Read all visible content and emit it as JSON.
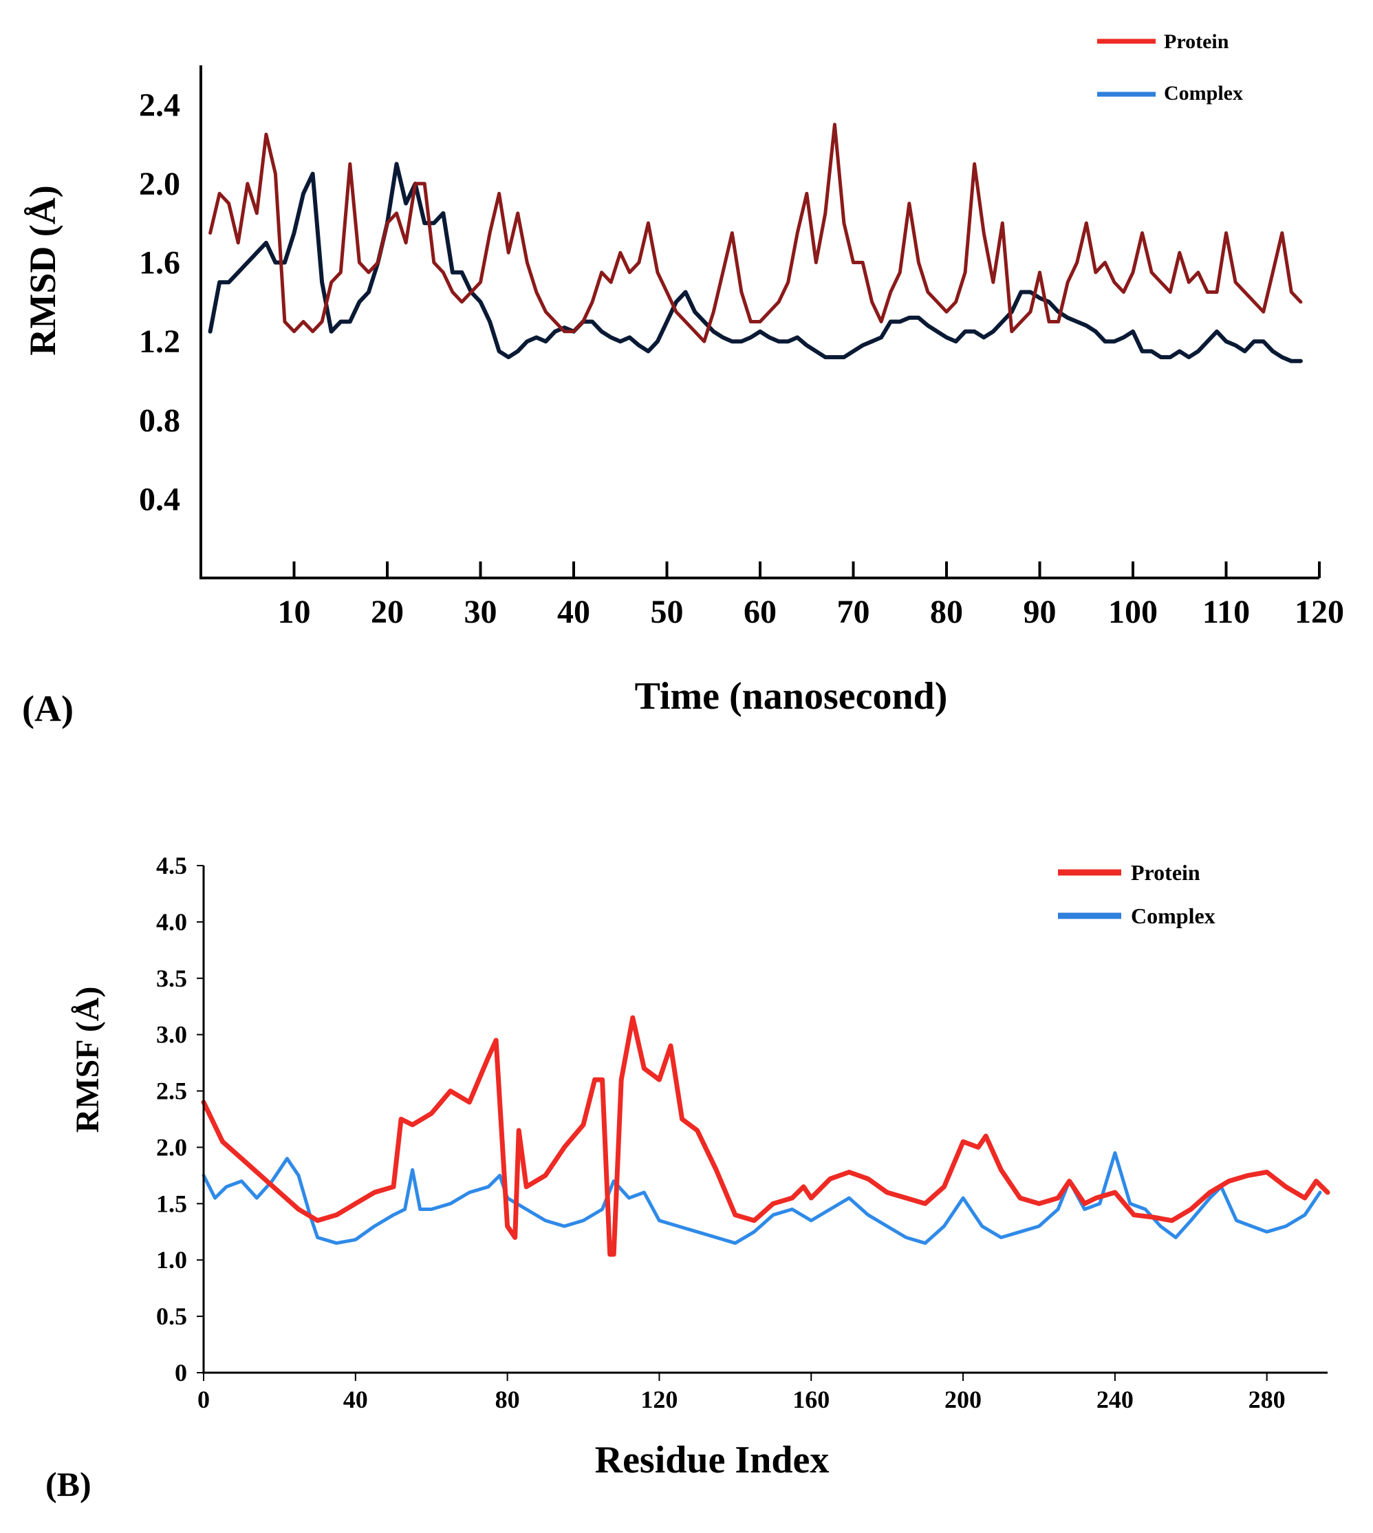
{
  "chart_data": [
    {
      "id": "A",
      "type": "line",
      "panel_label": "(A)",
      "title": "",
      "xlabel": "Time (nanosecond)",
      "ylabel": "RMSD (Å)",
      "xlim": [
        0,
        120
      ],
      "ylim": [
        0,
        2.6
      ],
      "xticks": [
        10,
        20,
        30,
        40,
        50,
        60,
        70,
        80,
        90,
        100,
        110,
        120
      ],
      "xtick_labels": [
        "10",
        "20",
        "30",
        "40",
        "50",
        "60",
        "70",
        "80",
        "90",
        "100",
        "110",
        "120"
      ],
      "yticks": [
        0.4,
        0.8,
        1.2,
        1.6,
        2.0,
        2.4
      ],
      "ytick_labels": [
        "0.4",
        "0.8",
        "1.2",
        "1.6",
        "2.0",
        "2.4"
      ],
      "legend_position": "top-right",
      "series": [
        {
          "name": "Protein",
          "legend_label": "Protein",
          "legend_color": "#ee2a24",
          "color": "#8b1a1a",
          "x": [
            1,
            2,
            3,
            4,
            5,
            6,
            7,
            8,
            9,
            10,
            11,
            12,
            13,
            14,
            15,
            16,
            17,
            18,
            19,
            20,
            21,
            22,
            23,
            24,
            25,
            26,
            27,
            28,
            29,
            30,
            31,
            32,
            33,
            34,
            35,
            36,
            37,
            38,
            39,
            40,
            41,
            42,
            43,
            44,
            45,
            46,
            47,
            48,
            49,
            50,
            51,
            52,
            53,
            54,
            55,
            56,
            57,
            58,
            59,
            60,
            61,
            62,
            63,
            64,
            65,
            66,
            67,
            68,
            69,
            70,
            71,
            72,
            73,
            74,
            75,
            76,
            77,
            78,
            79,
            80,
            81,
            82,
            83,
            84,
            85,
            86,
            87,
            88,
            89,
            90,
            91,
            92,
            93,
            94,
            95,
            96,
            97,
            98,
            99,
            100,
            101,
            102,
            103,
            104,
            105,
            106,
            107,
            108,
            109,
            110,
            111,
            112,
            113,
            114,
            115,
            116,
            117,
            118
          ],
          "y": [
            1.75,
            1.95,
            1.9,
            1.7,
            2.0,
            1.85,
            2.25,
            2.05,
            1.3,
            1.25,
            1.3,
            1.25,
            1.3,
            1.5,
            1.55,
            2.1,
            1.6,
            1.55,
            1.6,
            1.8,
            1.85,
            1.7,
            2.0,
            2.0,
            1.6,
            1.55,
            1.45,
            1.4,
            1.45,
            1.5,
            1.75,
            1.95,
            1.65,
            1.85,
            1.6,
            1.45,
            1.35,
            1.3,
            1.25,
            1.25,
            1.3,
            1.4,
            1.55,
            1.5,
            1.65,
            1.55,
            1.6,
            1.8,
            1.55,
            1.45,
            1.35,
            1.3,
            1.25,
            1.2,
            1.35,
            1.55,
            1.75,
            1.45,
            1.3,
            1.3,
            1.35,
            1.4,
            1.5,
            1.75,
            1.95,
            1.6,
            1.85,
            2.3,
            1.8,
            1.6,
            1.6,
            1.4,
            1.3,
            1.45,
            1.55,
            1.9,
            1.6,
            1.45,
            1.4,
            1.35,
            1.4,
            1.55,
            2.1,
            1.75,
            1.5,
            1.8,
            1.25,
            1.3,
            1.35,
            1.55,
            1.3,
            1.3,
            1.5,
            1.6,
            1.8,
            1.55,
            1.6,
            1.5,
            1.45,
            1.55,
            1.75,
            1.55,
            1.5,
            1.45,
            1.65,
            1.5,
            1.55,
            1.45,
            1.45,
            1.75,
            1.5,
            1.45,
            1.4,
            1.35,
            1.55,
            1.75,
            1.45,
            1.4
          ]
        },
        {
          "name": "Complex",
          "legend_label": "Complex",
          "legend_color": "#2f7fdc",
          "color": "#0a1a35",
          "x": [
            1,
            2,
            3,
            4,
            5,
            6,
            7,
            8,
            9,
            10,
            11,
            12,
            13,
            14,
            15,
            16,
            17,
            18,
            19,
            20,
            21,
            22,
            23,
            24,
            25,
            26,
            27,
            28,
            29,
            30,
            31,
            32,
            33,
            34,
            35,
            36,
            37,
            38,
            39,
            40,
            41,
            42,
            43,
            44,
            45,
            46,
            47,
            48,
            49,
            50,
            51,
            52,
            53,
            54,
            55,
            56,
            57,
            58,
            59,
            60,
            61,
            62,
            63,
            64,
            65,
            66,
            67,
            68,
            69,
            70,
            71,
            72,
            73,
            74,
            75,
            76,
            77,
            78,
            79,
            80,
            81,
            82,
            83,
            84,
            85,
            86,
            87,
            88,
            89,
            90,
            91,
            92,
            93,
            94,
            95,
            96,
            97,
            98,
            99,
            100,
            101,
            102,
            103,
            104,
            105,
            106,
            107,
            108,
            109,
            110,
            111,
            112,
            113,
            114,
            115,
            116,
            117,
            118
          ],
          "y": [
            1.25,
            1.5,
            1.5,
            1.55,
            1.6,
            1.65,
            1.7,
            1.6,
            1.6,
            1.75,
            1.95,
            2.05,
            1.5,
            1.25,
            1.3,
            1.3,
            1.4,
            1.45,
            1.6,
            1.8,
            2.1,
            1.9,
            2.0,
            1.8,
            1.8,
            1.85,
            1.55,
            1.55,
            1.45,
            1.4,
            1.3,
            1.15,
            1.12,
            1.15,
            1.2,
            1.22,
            1.2,
            1.25,
            1.27,
            1.25,
            1.3,
            1.3,
            1.25,
            1.22,
            1.2,
            1.22,
            1.18,
            1.15,
            1.2,
            1.3,
            1.4,
            1.45,
            1.35,
            1.3,
            1.25,
            1.22,
            1.2,
            1.2,
            1.22,
            1.25,
            1.22,
            1.2,
            1.2,
            1.22,
            1.18,
            1.15,
            1.12,
            1.12,
            1.12,
            1.15,
            1.18,
            1.2,
            1.22,
            1.3,
            1.3,
            1.32,
            1.32,
            1.28,
            1.25,
            1.22,
            1.2,
            1.25,
            1.25,
            1.22,
            1.25,
            1.3,
            1.35,
            1.45,
            1.45,
            1.42,
            1.4,
            1.35,
            1.32,
            1.3,
            1.28,
            1.25,
            1.2,
            1.2,
            1.22,
            1.25,
            1.15,
            1.15,
            1.12,
            1.12,
            1.15,
            1.12,
            1.15,
            1.2,
            1.25,
            1.2,
            1.18,
            1.15,
            1.2,
            1.2,
            1.15,
            1.12,
            1.1,
            1.1
          ]
        }
      ]
    },
    {
      "id": "B",
      "type": "line",
      "panel_label": "(B)",
      "title": "",
      "xlabel": "Residue Index",
      "ylabel": "RMSF (Å)",
      "xlim": [
        0,
        296
      ],
      "ylim": [
        0,
        4.5
      ],
      "xticks": [
        0,
        40,
        80,
        120,
        160,
        200,
        240,
        280
      ],
      "xtick_labels": [
        "0",
        "40",
        "80",
        "120",
        "160",
        "200",
        "240",
        "280"
      ],
      "yticks": [
        0,
        0.5,
        1.0,
        1.5,
        2.0,
        2.5,
        3.0,
        3.5,
        4.0,
        4.5
      ],
      "ytick_labels": [
        "0",
        "0.5",
        "1.0",
        "1.5",
        "2.0",
        "2.5",
        "3.0",
        "3.5",
        "4.0",
        "4.5"
      ],
      "legend_position": "top-right",
      "series": [
        {
          "name": "Protein",
          "legend_label": "Protein",
          "legend_color": "#ee2a24",
          "color": "#ee2a24",
          "x": [
            0,
            5,
            10,
            15,
            20,
            25,
            30,
            35,
            40,
            45,
            50,
            52,
            55,
            60,
            65,
            70,
            75,
            77,
            80,
            82,
            83,
            85,
            90,
            95,
            100,
            103,
            105,
            107,
            108,
            110,
            113,
            116,
            120,
            123,
            126,
            130,
            135,
            140,
            145,
            150,
            155,
            158,
            160,
            165,
            170,
            175,
            180,
            185,
            190,
            195,
            200,
            204,
            206,
            210,
            215,
            220,
            225,
            228,
            232,
            235,
            240,
            245,
            250,
            255,
            260,
            265,
            270,
            275,
            280,
            285,
            290,
            293,
            296
          ],
          "y": [
            2.4,
            2.05,
            1.9,
            1.75,
            1.6,
            1.45,
            1.35,
            1.4,
            1.5,
            1.6,
            1.65,
            2.25,
            2.2,
            2.3,
            2.5,
            2.4,
            2.8,
            2.95,
            1.3,
            1.2,
            2.15,
            1.65,
            1.75,
            2.0,
            2.2,
            2.6,
            2.6,
            1.05,
            1.05,
            2.6,
            3.15,
            2.7,
            2.6,
            2.9,
            2.25,
            2.15,
            1.8,
            1.4,
            1.35,
            1.5,
            1.55,
            1.65,
            1.55,
            1.72,
            1.78,
            1.72,
            1.6,
            1.55,
            1.5,
            1.65,
            2.05,
            2.0,
            2.1,
            1.8,
            1.55,
            1.5,
            1.55,
            1.7,
            1.5,
            1.55,
            1.6,
            1.4,
            1.38,
            1.35,
            1.45,
            1.6,
            1.7,
            1.75,
            1.78,
            1.65,
            1.55,
            1.7,
            1.6
          ]
        },
        {
          "name": "Complex",
          "legend_label": "Complex",
          "legend_color": "#2f7fdc",
          "color": "#2f8ae8",
          "x": [
            0,
            3,
            6,
            10,
            14,
            18,
            22,
            25,
            28,
            30,
            35,
            40,
            45,
            50,
            53,
            55,
            57,
            60,
            65,
            70,
            75,
            78,
            80,
            85,
            90,
            95,
            100,
            105,
            108,
            112,
            116,
            120,
            125,
            130,
            135,
            140,
            145,
            150,
            155,
            160,
            165,
            170,
            175,
            180,
            185,
            190,
            195,
            200,
            205,
            210,
            215,
            220,
            225,
            228,
            232,
            236,
            240,
            244,
            248,
            252,
            256,
            260,
            265,
            268,
            272,
            276,
            280,
            285,
            290,
            294
          ],
          "y": [
            1.75,
            1.55,
            1.65,
            1.7,
            1.55,
            1.7,
            1.9,
            1.75,
            1.4,
            1.2,
            1.15,
            1.18,
            1.3,
            1.4,
            1.45,
            1.8,
            1.45,
            1.45,
            1.5,
            1.6,
            1.65,
            1.75,
            1.55,
            1.45,
            1.35,
            1.3,
            1.35,
            1.45,
            1.7,
            1.55,
            1.6,
            1.35,
            1.3,
            1.25,
            1.2,
            1.15,
            1.25,
            1.4,
            1.45,
            1.35,
            1.45,
            1.55,
            1.4,
            1.3,
            1.2,
            1.15,
            1.3,
            1.55,
            1.3,
            1.2,
            1.25,
            1.3,
            1.45,
            1.7,
            1.45,
            1.5,
            1.95,
            1.5,
            1.45,
            1.3,
            1.2,
            1.35,
            1.55,
            1.65,
            1.35,
            1.3,
            1.25,
            1.3,
            1.4,
            1.6
          ]
        }
      ]
    }
  ]
}
